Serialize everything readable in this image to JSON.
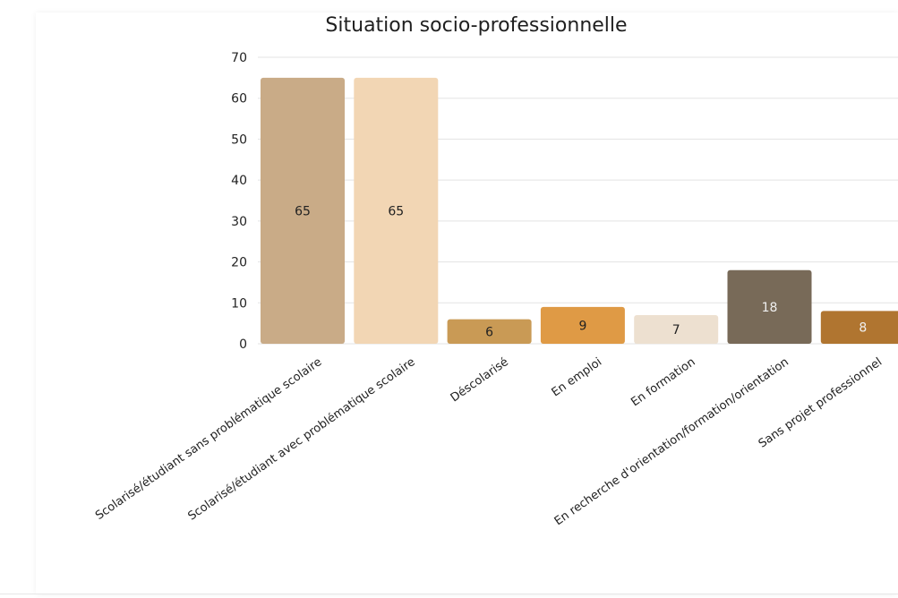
{
  "chart_data": {
    "type": "bar",
    "title": "Situation socio-professionnelle",
    "xlabel": "",
    "ylabel": "",
    "ylim": [
      0,
      70
    ],
    "yticks": [
      0,
      10,
      20,
      30,
      40,
      50,
      60,
      70
    ],
    "grid": true,
    "legend": "none",
    "categories": [
      "Scolarisé/étudiant sans problématique scolaire",
      "Scolarisé/étudiant avec problématique scolaire",
      "Déscolarisé",
      "En emploi",
      "En formation",
      "En recherche d'orientation/formation/orientation",
      "Sans projet professionnel"
    ],
    "values": [
      65,
      65,
      6,
      9,
      7,
      18,
      8
    ],
    "colors": [
      "#c9ab87",
      "#f2d6b4",
      "#c99a55",
      "#df9a45",
      "#ede0d0",
      "#786a58",
      "#b07530"
    ],
    "label_colors": [
      "#222222",
      "#222222",
      "#222222",
      "#222222",
      "#222222",
      "#f0f0f0",
      "#f0f0f0"
    ]
  }
}
